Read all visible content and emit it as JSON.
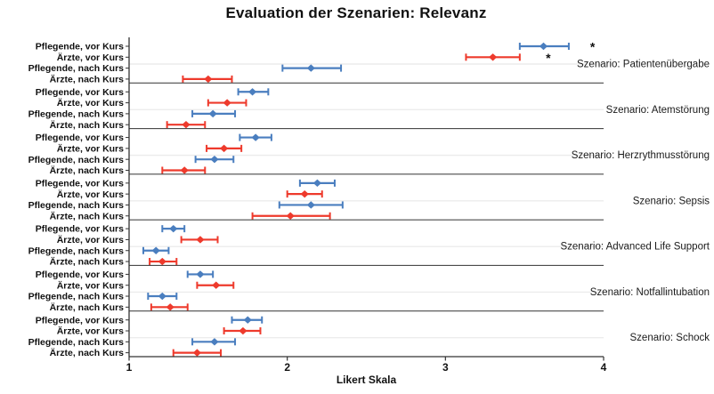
{
  "title": "Evaluation der Szenarien: Relevanz",
  "colors": {
    "pflegende": "#4a7ebf",
    "aerzte": "#ee3a2c",
    "axis": "#333333",
    "section_divider": "#4a4a4a",
    "gridline": "#ececec"
  },
  "chart_data": {
    "type": "scatter",
    "subtype": "dot-and-ci-forest-plot",
    "title": "Evaluation der Szenarien: Relevanz",
    "xlabel": "Likert Skala",
    "xlim": [
      1,
      4
    ],
    "xticks": [
      "1",
      "2",
      "3",
      "4"
    ],
    "legend": "none",
    "grid": "light horizontal line at middle of each scenario block",
    "row_labels": [
      "Pflegende, vor Kurs",
      "Ärzte, vor Kurs",
      "Pflegende, nach Kurs",
      "Ärzte, nach Kurs"
    ],
    "significance_marker": "*",
    "sections": [
      {
        "label": "Szenario: Patientenübergabe",
        "rows": [
          {
            "group": "Pflegende, vor Kurs",
            "color": "pflegende",
            "mean": 3.62,
            "ci": [
              3.47,
              3.78
            ],
            "star": 3.93
          },
          {
            "group": "Ärzte, vor Kurs",
            "color": "aerzte",
            "mean": 3.3,
            "ci": [
              3.13,
              3.47
            ],
            "star": 3.65
          },
          {
            "group": "Pflegende, nach Kurs",
            "color": "pflegende",
            "mean": 2.15,
            "ci": [
              1.97,
              2.34
            ]
          },
          {
            "group": "Ärzte, nach Kurs",
            "color": "aerzte",
            "mean": 1.5,
            "ci": [
              1.34,
              1.65
            ]
          }
        ]
      },
      {
        "label": "Szenario: Atemstörung",
        "rows": [
          {
            "group": "Pflegende, vor Kurs",
            "color": "pflegende",
            "mean": 1.78,
            "ci": [
              1.69,
              1.88
            ]
          },
          {
            "group": "Ärzte, vor Kurs",
            "color": "aerzte",
            "mean": 1.62,
            "ci": [
              1.5,
              1.74
            ]
          },
          {
            "group": "Pflegende, nach Kurs",
            "color": "pflegende",
            "mean": 1.53,
            "ci": [
              1.4,
              1.67
            ]
          },
          {
            "group": "Ärzte, nach Kurs",
            "color": "aerzte",
            "mean": 1.36,
            "ci": [
              1.24,
              1.48
            ]
          }
        ]
      },
      {
        "label": "Szenario: Herzrythmusstörung",
        "rows": [
          {
            "group": "Pflegende, vor Kurs",
            "color": "pflegende",
            "mean": 1.8,
            "ci": [
              1.7,
              1.9
            ]
          },
          {
            "group": "Ärzte, vor Kurs",
            "color": "aerzte",
            "mean": 1.6,
            "ci": [
              1.49,
              1.71
            ]
          },
          {
            "group": "Pflegende, nach Kurs",
            "color": "pflegende",
            "mean": 1.54,
            "ci": [
              1.42,
              1.66
            ]
          },
          {
            "group": "Ärzte, nach Kurs",
            "color": "aerzte",
            "mean": 1.35,
            "ci": [
              1.21,
              1.48
            ]
          }
        ]
      },
      {
        "label": "Szenario: Sepsis",
        "rows": [
          {
            "group": "Pflegende, vor Kurs",
            "color": "pflegende",
            "mean": 2.19,
            "ci": [
              2.08,
              2.3
            ]
          },
          {
            "group": "Ärzte, vor Kurs",
            "color": "aerzte",
            "mean": 2.11,
            "ci": [
              2.0,
              2.22
            ]
          },
          {
            "group": "Pflegende, nach Kurs",
            "color": "pflegende",
            "mean": 2.15,
            "ci": [
              1.95,
              2.35
            ]
          },
          {
            "group": "Ärzte, nach Kurs",
            "color": "aerzte",
            "mean": 2.02,
            "ci": [
              1.78,
              2.27
            ]
          }
        ]
      },
      {
        "label": "Szenario: Advanced Life Support",
        "rows": [
          {
            "group": "Pflegende, vor Kurs",
            "color": "pflegende",
            "mean": 1.28,
            "ci": [
              1.21,
              1.35
            ]
          },
          {
            "group": "Ärzte, vor Kurs",
            "color": "aerzte",
            "mean": 1.45,
            "ci": [
              1.33,
              1.56
            ]
          },
          {
            "group": "Pflegende, nach Kurs",
            "color": "pflegende",
            "mean": 1.17,
            "ci": [
              1.09,
              1.25
            ]
          },
          {
            "group": "Ärzte, nach Kurs",
            "color": "aerzte",
            "mean": 1.21,
            "ci": [
              1.13,
              1.3
            ]
          }
        ]
      },
      {
        "label": "Szenario: Notfallintubation",
        "rows": [
          {
            "group": "Pflegende, vor Kurs",
            "color": "pflegende",
            "mean": 1.45,
            "ci": [
              1.37,
              1.53
            ]
          },
          {
            "group": "Ärzte, vor Kurs",
            "color": "aerzte",
            "mean": 1.55,
            "ci": [
              1.43,
              1.66
            ]
          },
          {
            "group": "Pflegende, nach Kurs",
            "color": "pflegende",
            "mean": 1.21,
            "ci": [
              1.12,
              1.3
            ]
          },
          {
            "group": "Ärzte, nach Kurs",
            "color": "aerzte",
            "mean": 1.26,
            "ci": [
              1.14,
              1.37
            ]
          }
        ]
      },
      {
        "label": "Szenario: Schock",
        "rows": [
          {
            "group": "Pflegende, vor Kurs",
            "color": "pflegende",
            "mean": 1.75,
            "ci": [
              1.65,
              1.84
            ]
          },
          {
            "group": "Ärzte, vor Kurs",
            "color": "aerzte",
            "mean": 1.72,
            "ci": [
              1.6,
              1.83
            ]
          },
          {
            "group": "Pflegende, nach Kurs",
            "color": "pflegende",
            "mean": 1.54,
            "ci": [
              1.4,
              1.67
            ]
          },
          {
            "group": "Ärzte, nach Kurs",
            "color": "aerzte",
            "mean": 1.43,
            "ci": [
              1.28,
              1.58
            ]
          }
        ]
      }
    ]
  }
}
